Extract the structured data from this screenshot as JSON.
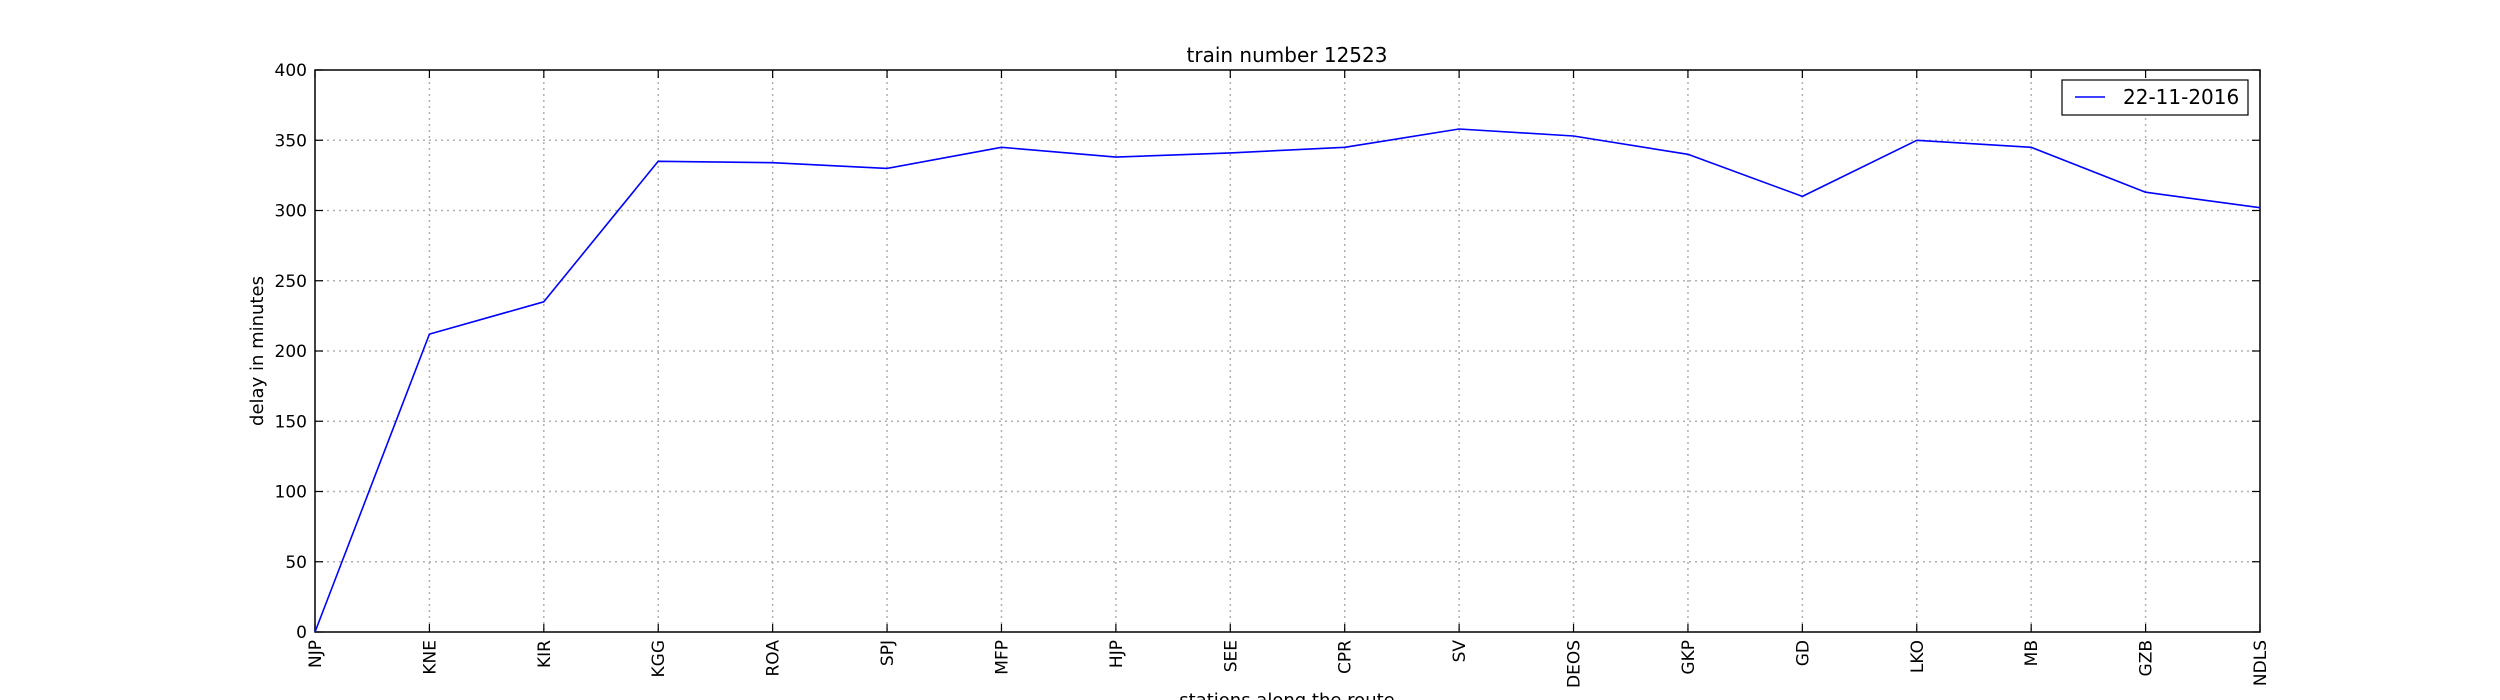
{
  "chart_data": {
    "type": "line",
    "title": "train number 12523",
    "xlabel": "stations along the route",
    "ylabel": "delay in minutes",
    "categories": [
      "NJP",
      "KNE",
      "KIR",
      "KGG",
      "ROA",
      "SPJ",
      "MFP",
      "HJP",
      "SEE",
      "CPR",
      "SV",
      "DEOS",
      "GKP",
      "GD",
      "LKO",
      "MB",
      "GZB",
      "NDLS"
    ],
    "ylim": [
      0,
      400
    ],
    "yticks": [
      0,
      50,
      100,
      150,
      200,
      250,
      300,
      350,
      400
    ],
    "grid": true,
    "legend_position": "top-right",
    "series": [
      {
        "name": "22-11-2016",
        "color": "#0000ff",
        "values": [
          0,
          212,
          235,
          335,
          334,
          330,
          345,
          338,
          341,
          345,
          358,
          353,
          340,
          310,
          350,
          345,
          313,
          302
        ]
      }
    ]
  }
}
